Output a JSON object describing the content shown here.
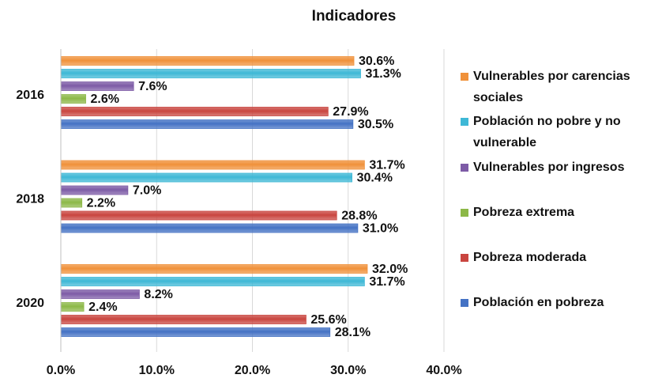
{
  "chart_data": {
    "type": "bar",
    "orientation": "horizontal",
    "title": "Indicadores",
    "categories": [
      "2016",
      "2018",
      "2020"
    ],
    "series": [
      {
        "name": "Vulnerables por carencias sociales",
        "color": "#f0913a",
        "values": [
          30.6,
          31.7,
          32.0
        ],
        "value_labels": [
          "30.6%",
          "31.7%",
          "32.0%"
        ]
      },
      {
        "name": "Población no pobre y no vulnerable",
        "color": "#3eb8d6",
        "values": [
          31.3,
          30.4,
          31.7
        ],
        "value_labels": [
          "31.3%",
          "30.4%",
          "31.7%"
        ]
      },
      {
        "name": "Vulnerables por ingresos",
        "color": "#7d5ba6",
        "values": [
          7.6,
          7.0,
          8.2
        ],
        "value_labels": [
          "7.6%",
          "7.0%",
          "8.2%"
        ]
      },
      {
        "name": "Pobreza extrema",
        "color": "#8cb847",
        "values": [
          2.6,
          2.2,
          2.4
        ],
        "value_labels": [
          "2.6%",
          "2.2%",
          "2.4%"
        ]
      },
      {
        "name": "Pobreza moderada",
        "color": "#c9453f",
        "values": [
          27.9,
          28.8,
          25.6
        ],
        "value_labels": [
          "27.9%",
          "28.8%",
          "25.6%"
        ]
      },
      {
        "name": "Población en pobreza",
        "color": "#4472c4",
        "values": [
          30.5,
          31.0,
          28.1
        ],
        "value_labels": [
          "30.5%",
          "31.0%",
          "28.1%"
        ]
      }
    ],
    "xlim": [
      0,
      40
    ],
    "xticks": [
      {
        "value": 0,
        "label": "0.0%"
      },
      {
        "value": 10,
        "label": "10.0%"
      },
      {
        "value": 20,
        "label": "20.0%"
      },
      {
        "value": 30,
        "label": "30.0%"
      },
      {
        "value": 40,
        "label": "40.0%"
      }
    ],
    "grid": true,
    "legend": "right"
  }
}
